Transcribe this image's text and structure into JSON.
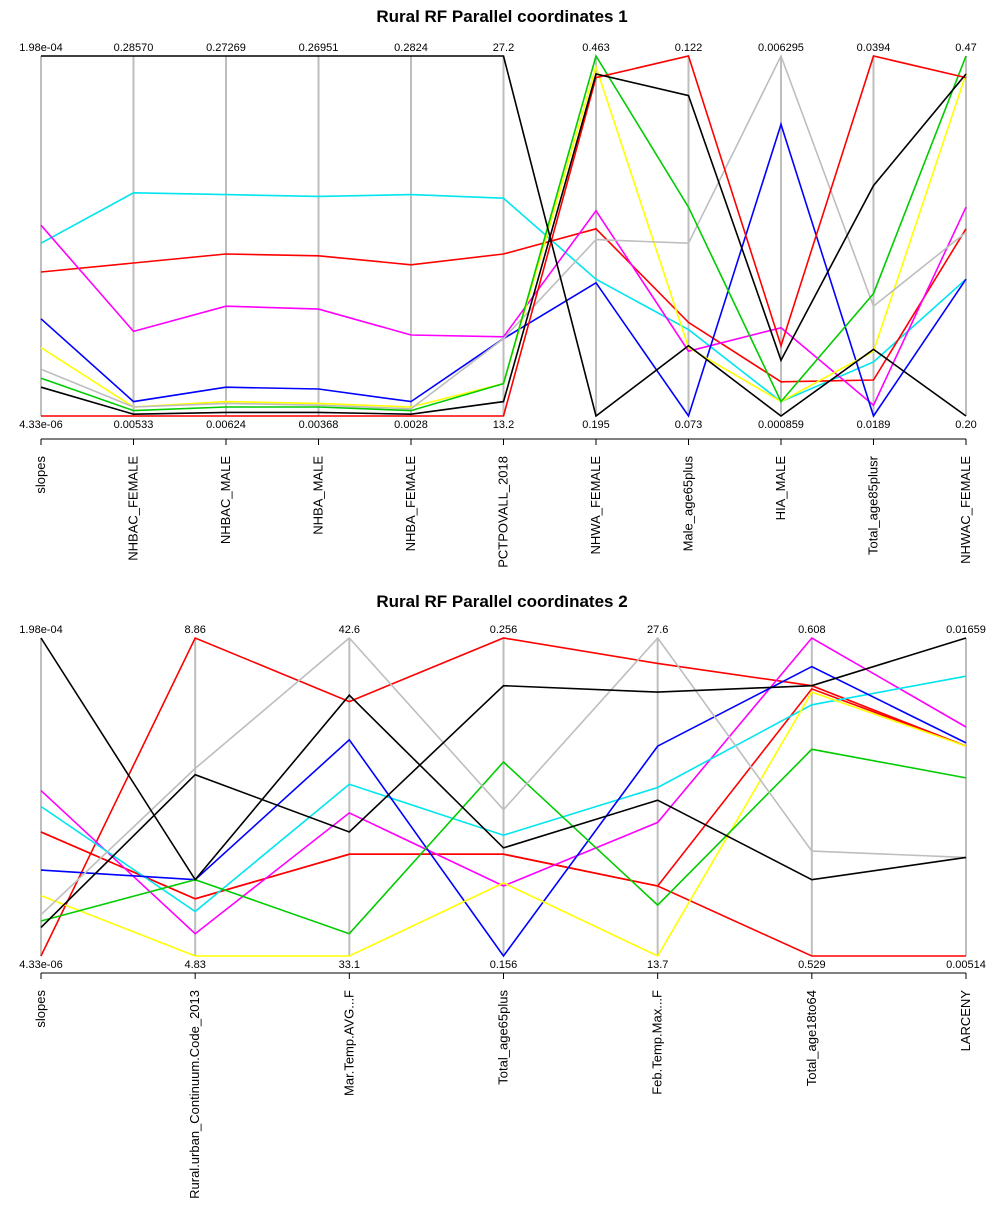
{
  "chart_data": [
    {
      "type": "parallel_coordinates",
      "title": "Rural RF Parallel coordinates 1",
      "axes": [
        {
          "name": "slopes",
          "max": "1.98e-04",
          "min": "4.33e-06"
        },
        {
          "name": "NHBAC_FEMALE",
          "max": "0.28570",
          "min": "0.00533"
        },
        {
          "name": "NHBAC_MALE",
          "max": "0.27269",
          "min": "0.00624"
        },
        {
          "name": "NHBA_MALE",
          "max": "0.26951",
          "min": "0.00368"
        },
        {
          "name": "NHBA_FEMALE",
          "max": "0.2824",
          "min": "0.0028"
        },
        {
          "name": "PCTPOVALL_2018",
          "max": "27.2",
          "min": "13.2"
        },
        {
          "name": "NHWA_FEMALE",
          "max": "0.463",
          "min": "0.195"
        },
        {
          "name": "Male_age65plus",
          "max": "0.122",
          "min": "0.073"
        },
        {
          "name": "HIA_MALE",
          "max": "0.006295",
          "min": "0.000859"
        },
        {
          "name": "Total_age85plusr",
          "max": "0.0394",
          "min": "0.0189"
        },
        {
          "name": "NHWAC_FEMALE",
          "max": "0.47",
          "min": "0.20"
        }
      ],
      "series": [
        {
          "color": "#00e5ee",
          "values": [
            0.48,
            0.62,
            0.615,
            0.61,
            0.615,
            0.605,
            0.38,
            0.24,
            0.04,
            0.15,
            0.38
          ]
        },
        {
          "color": "#ff0000",
          "values": [
            0.4,
            0.425,
            0.45,
            0.445,
            0.42,
            0.45,
            0.52,
            0.26,
            0.095,
            0.1,
            0.52
          ]
        },
        {
          "color": "#ff00ff",
          "values": [
            0.53,
            0.235,
            0.305,
            0.297,
            0.225,
            0.22,
            0.57,
            0.18,
            0.245,
            0.03,
            0.58
          ]
        },
        {
          "color": "#0000ff",
          "values": [
            0.27,
            0.04,
            0.08,
            0.075,
            0.04,
            0.215,
            0.37,
            0.0,
            0.81,
            0.0,
            0.38
          ]
        },
        {
          "color": "#ffff00",
          "values": [
            0.19,
            0.025,
            0.04,
            0.035,
            0.025,
            0.09,
            0.97,
            0.19,
            0.04,
            0.18,
            0.95
          ]
        },
        {
          "color": "#bebebe",
          "values": [
            0.13,
            0.025,
            0.035,
            0.03,
            0.02,
            0.215,
            0.49,
            0.48,
            1.0,
            0.305,
            0.51
          ]
        },
        {
          "color": "#00cc00",
          "values": [
            0.105,
            0.015,
            0.025,
            0.025,
            0.015,
            0.09,
            1.0,
            0.58,
            0.04,
            0.34,
            1.0
          ]
        },
        {
          "color": "#ff0000",
          "values": [
            0.0,
            0.0,
            0.0,
            0.0,
            0.0,
            0.0,
            0.94,
            1.0,
            0.195,
            1.0,
            0.94
          ]
        },
        {
          "color": "#000000",
          "values": [
            0.08,
            0.005,
            0.01,
            0.01,
            0.005,
            0.04,
            0.95,
            0.89,
            0.155,
            0.64,
            0.95
          ]
        },
        {
          "color": "#000000",
          "values": [
            1.0,
            1.0,
            1.0,
            1.0,
            1.0,
            1.0,
            0.0,
            0.195,
            0.0,
            0.185,
            0.0
          ]
        }
      ]
    },
    {
      "type": "parallel_coordinates",
      "title": "Rural RF Parallel coordinates 2",
      "axes": [
        {
          "name": "slopes",
          "max": "1.98e-04",
          "min": "4.33e-06"
        },
        {
          "name": "Rural.urban_Continuum.Code_2013",
          "max": "8.86",
          "min": "4.83"
        },
        {
          "name": "Mar.Temp.AVG...F",
          "max": "42.6",
          "min": "33.1"
        },
        {
          "name": "Total_age65plus",
          "max": "0.256",
          "min": "0.156"
        },
        {
          "name": "Feb.Temp.Max...F",
          "max": "27.6",
          "min": "13.7"
        },
        {
          "name": "Total_age18to64",
          "max": "0.608",
          "min": "0.529"
        },
        {
          "name": "LARCENY",
          "max": "0.01659",
          "min": "0.00514"
        }
      ],
      "series": [
        {
          "color": "#ff0000",
          "values": [
            0.0,
            1.0,
            0.8,
            1.0,
            0.92,
            0.85,
            0.66
          ]
        },
        {
          "color": "#ff0000",
          "values": [
            0.39,
            0.18,
            0.32,
            0.32,
            0.22,
            0.84,
            0.66
          ]
        },
        {
          "color": "#ff0000",
          "values": [
            0.39,
            0.18,
            0.32,
            0.32,
            0.22,
            0.0,
            0.0
          ]
        },
        {
          "color": "#ff00ff",
          "values": [
            0.52,
            0.07,
            0.45,
            0.22,
            0.42,
            1.0,
            0.72
          ]
        },
        {
          "color": "#00e5ee",
          "values": [
            0.47,
            0.14,
            0.54,
            0.38,
            0.53,
            0.79,
            0.88
          ]
        },
        {
          "color": "#0000ff",
          "values": [
            0.27,
            0.24,
            0.68,
            0.0,
            0.66,
            0.91,
            0.67
          ]
        },
        {
          "color": "#ffff00",
          "values": [
            0.19,
            0.0,
            0.0,
            0.23,
            0.0,
            0.83,
            0.66
          ]
        },
        {
          "color": "#00cc00",
          "values": [
            0.11,
            0.24,
            0.07,
            0.61,
            0.16,
            0.65,
            0.56
          ]
        },
        {
          "color": "#bebebe",
          "values": [
            0.13,
            0.59,
            1.0,
            0.46,
            1.0,
            0.33,
            0.31
          ]
        },
        {
          "color": "#000000",
          "values": [
            0.09,
            0.57,
            0.39,
            0.85,
            0.83,
            0.85,
            1.0
          ]
        },
        {
          "color": "#000000",
          "values": [
            1.0,
            0.24,
            0.82,
            0.34,
            0.49,
            0.24,
            0.31
          ]
        }
      ]
    }
  ]
}
